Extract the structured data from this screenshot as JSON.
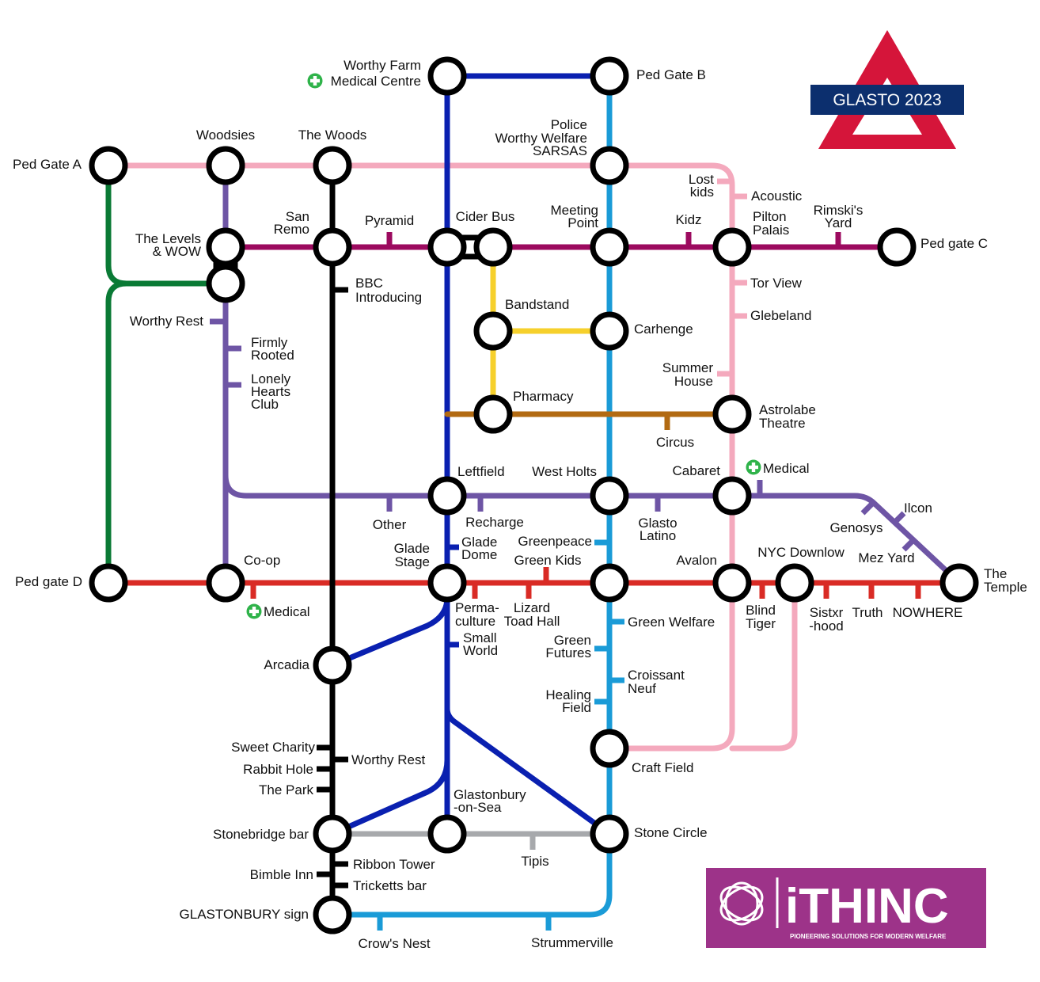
{
  "logo": {
    "title": "GLASTO 2023"
  },
  "brand": {
    "name": "iTHINC",
    "tagline": "PIONEERING SOLUTIONS FOR MODERN WELFARE"
  },
  "colors": {
    "pink": "#f4a9bd",
    "maroon": "#9c0a5f",
    "darkblue": "#0a20b0",
    "lightblue": "#1a9bd7",
    "green": "#0a7a35",
    "purple": "#6e55a5",
    "red": "#d92b25",
    "black": "#000000",
    "yellow": "#f6d02c",
    "brown": "#b26a12",
    "grey": "#a7a9ac",
    "logo_red": "#d5153a",
    "logo_navy": "#0c2f6e",
    "brand_purple": "#8a2d8c"
  },
  "labels": {
    "worthy_farm_1": "Worthy Farm",
    "worthy_farm_2": "Medical Centre",
    "ped_gate_b": "Ped Gate B",
    "police_1": "Police",
    "police_2": "Worthy Welfare",
    "police_3": "SARSAS",
    "ped_gate_a": "Ped Gate A",
    "woodsies": "Woodsies",
    "the_woods": "The Woods",
    "lost_kids_1": "Lost",
    "lost_kids_2": "kids",
    "acoustic": "Acoustic",
    "levels_1": "The Levels",
    "levels_2": "& WOW",
    "san_remo_1": "San",
    "san_remo_2": "Remo",
    "pyramid": "Pyramid",
    "cider_bus": "Cider Bus",
    "meeting_point_1": "Meeting",
    "meeting_point_2": "Point",
    "kidz": "Kidz",
    "pilton_1": "Pilton",
    "pilton_2": "Palais",
    "rimskis_1": "Rimski's",
    "rimskis_2": "Yard",
    "ped_gate_c": "Ped gate C",
    "bbc_1": "BBC",
    "bbc_2": "Introducing",
    "tor_view": "Tor View",
    "glebeland": "Glebeland",
    "worthy_rest_w": "Worthy Rest",
    "bandstand": "Bandstand",
    "carhenge": "Carhenge",
    "firmly_1": "Firmly",
    "firmly_2": "Rooted",
    "lonely_1": "Lonely",
    "lonely_2": "Hearts",
    "lonely_3": "Club",
    "summer_1": "Summer",
    "summer_2": "House",
    "pharmacy": "Pharmacy",
    "astrolabe_1": "Astrolabe",
    "astrolabe_2": "Theatre",
    "circus": "Circus",
    "leftfield": "Leftfield",
    "west_holts": "West Holts",
    "cabaret": "Cabaret",
    "medical_e": "Medical",
    "other": "Other",
    "recharge": "Recharge",
    "glasto_latino_1": "Glasto",
    "glasto_latino_2": "Latino",
    "genosys": "Genosys",
    "ilcon": "Ilcon",
    "mez_yard": "Mez Yard",
    "glade_stage_1": "Glade",
    "glade_stage_2": "Stage",
    "glade_dome_1": "Glade",
    "glade_dome_2": "Dome",
    "greenpeace": "Greenpeace",
    "green_kids": "Green Kids",
    "avalon": "Avalon",
    "nyc_downlow": "NYC Downlow",
    "the_temple_1": "The",
    "the_temple_2": "Temple",
    "ped_gate_d": "Ped gate D",
    "coop": "Co-op",
    "medical_s": "Medical",
    "perma_1": "Perma-",
    "perma_2": "culture",
    "lizard_1": "Lizard",
    "lizard_2": "Toad Hall",
    "blind_1": "Blind",
    "blind_2": "Tiger",
    "sistxr_1": "Sistxr",
    "sistxr_2": "-hood",
    "truth": "Truth",
    "nowhere": "NOWHERE",
    "green_welfare": "Green Welfare",
    "small_world_1": "Small",
    "small_world_2": "World",
    "green_futures_1": "Green",
    "green_futures_2": "Futures",
    "arcadia": "Arcadia",
    "croissant_1": "Croissant",
    "croissant_2": "Neuf",
    "healing_1": "Healing",
    "healing_2": "Field",
    "sweet_charity": "Sweet Charity",
    "worthy_rest_s": "Worthy Rest",
    "rabbit_hole": "Rabbit Hole",
    "the_park": "The Park",
    "craft_field": "Craft Field",
    "glastonbury_sea_1": "Glastonbury",
    "glastonbury_sea_2": "-on-Sea",
    "stonebridge": "Stonebridge bar",
    "stone_circle": "Stone Circle",
    "ribbon_tower": "Ribbon Tower",
    "tipis": "Tipis",
    "bimble_inn": "Bimble Inn",
    "tricketts": "Tricketts bar",
    "glastonbury_sign": "GLASTONBURY sign",
    "crows_nest": "Crow's Nest",
    "strummerville": "Strummerville"
  }
}
